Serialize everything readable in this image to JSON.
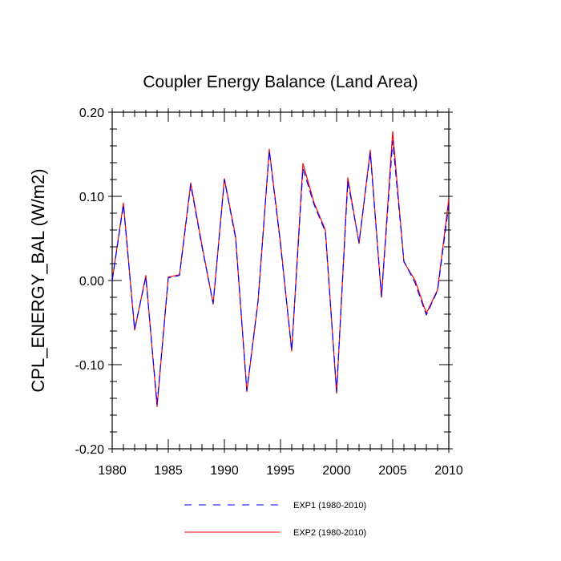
{
  "chart_data": {
    "type": "line",
    "title": "Coupler Energy Balance (Land Area)",
    "xlabel": "",
    "ylabel": "CPL_ENERGY_BAL  (W/m2)",
    "xlim": [
      1980,
      2010
    ],
    "ylim": [
      -0.2,
      0.2
    ],
    "xticks": [
      1980,
      1985,
      1990,
      1995,
      2000,
      2005,
      2010
    ],
    "xtick_labels": [
      "1980",
      "1985",
      "1990",
      "1995",
      "2000",
      "2005",
      "2010"
    ],
    "yticks": [
      -0.2,
      -0.1,
      0.0,
      0.1,
      0.2
    ],
    "ytick_labels": [
      "-0.20",
      "-0.10",
      "0.00",
      "0.10",
      "0.20"
    ],
    "grid": false,
    "legend_position": "bottom",
    "x": [
      1980,
      1981,
      1982,
      1983,
      1984,
      1985,
      1986,
      1987,
      1988,
      1989,
      1990,
      1991,
      1992,
      1993,
      1994,
      1995,
      1996,
      1997,
      1998,
      1999,
      2000,
      2001,
      2002,
      2003,
      2004,
      2005,
      2006,
      2007,
      2008,
      2009,
      2010
    ],
    "series": [
      {
        "name": "EXP1 (1980-2010)",
        "color": "#0000ff",
        "dash": "dashed",
        "values": [
          0.0,
          0.09,
          -0.058,
          0.004,
          -0.147,
          0.003,
          0.006,
          0.114,
          0.04,
          -0.027,
          0.12,
          0.05,
          -0.131,
          -0.024,
          0.154,
          0.043,
          -0.083,
          0.133,
          0.09,
          0.058,
          -0.132,
          0.118,
          0.045,
          0.152,
          -0.019,
          0.166,
          0.023,
          -0.003,
          -0.041,
          -0.012,
          0.09
        ]
      },
      {
        "name": "EXP2 (1980-2010)",
        "color": "#ff0000",
        "dash": "solid",
        "values": [
          0.0,
          0.092,
          -0.059,
          0.006,
          -0.15,
          0.004,
          0.007,
          0.116,
          0.042,
          -0.028,
          0.121,
          0.052,
          -0.132,
          -0.025,
          0.156,
          0.045,
          -0.084,
          0.139,
          0.092,
          0.06,
          -0.134,
          0.122,
          0.044,
          0.155,
          -0.02,
          0.177,
          0.022,
          0.0,
          -0.039,
          -0.011,
          0.097
        ]
      }
    ]
  }
}
